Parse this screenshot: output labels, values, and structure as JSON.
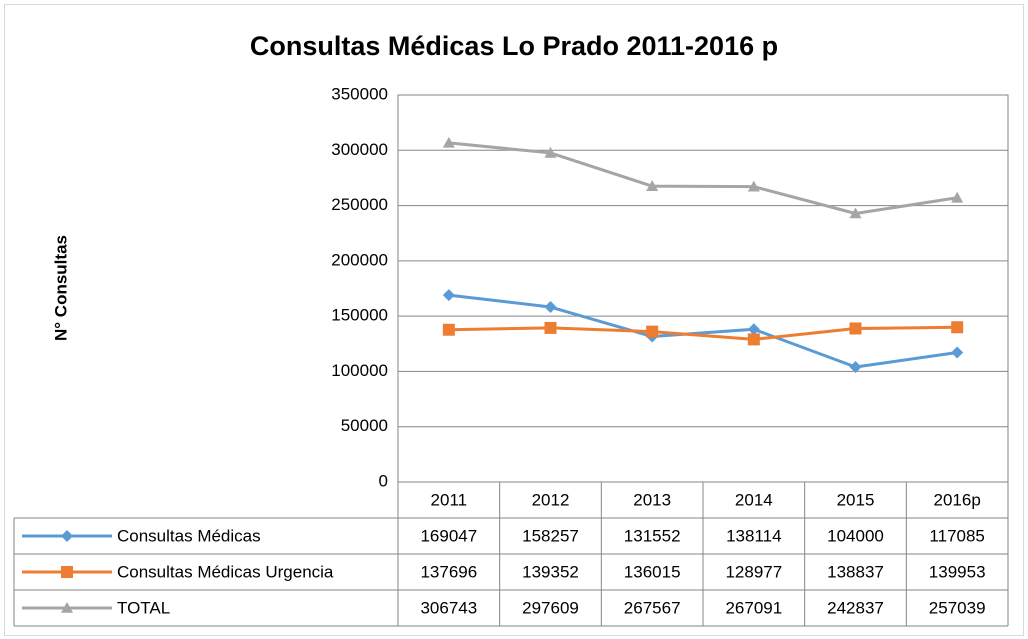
{
  "chart_data": {
    "type": "line",
    "title": "Consultas Médicas Lo Prado 2011-2016 p",
    "y_label": "N° Consultas",
    "categories": [
      "2011",
      "2012",
      "2013",
      "2014",
      "2015",
      "2016p"
    ],
    "series": [
      {
        "name": "Consultas Médicas",
        "color": "#5b9bd5",
        "marker": "diamond",
        "values": [
          169047,
          158257,
          131552,
          138114,
          104000,
          117085
        ]
      },
      {
        "name": "Consultas Médicas Urgencia",
        "color": "#ed7d31",
        "marker": "square",
        "values": [
          137696,
          139352,
          136015,
          128977,
          138837,
          139953
        ]
      },
      {
        "name": "TOTAL",
        "color": "#a5a5a5",
        "marker": "triangle",
        "values": [
          306743,
          297609,
          267567,
          267091,
          242837,
          257039
        ]
      }
    ],
    "ylim": [
      0,
      350000
    ],
    "yticks": [
      0,
      50000,
      100000,
      150000,
      200000,
      250000,
      300000,
      350000
    ],
    "grid": true,
    "data_table": true
  }
}
